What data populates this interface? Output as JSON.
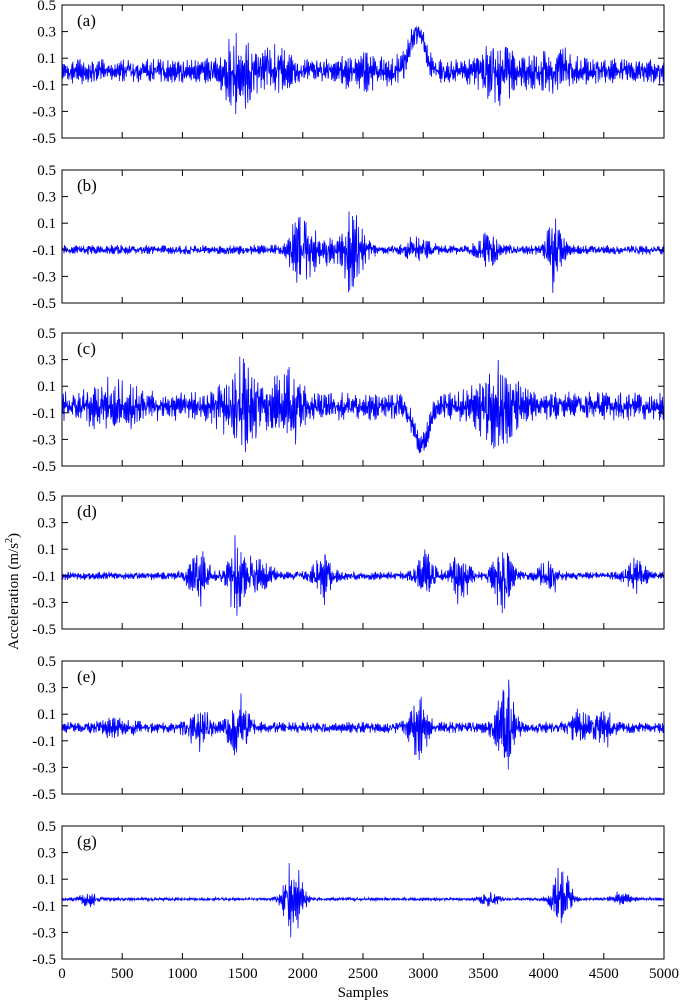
{
  "chart_data": {
    "type": "line",
    "xlabel": "Samples",
    "ylabel_text": "Acceleration (m/s",
    "ylabel_sup": "2",
    "ylabel_tail": ")",
    "xlim": [
      0,
      5000
    ],
    "ylim": [
      -0.5,
      0.5
    ],
    "x_ticks": [
      0,
      500,
      1000,
      1500,
      2000,
      2500,
      3000,
      3500,
      4000,
      4500,
      5000
    ],
    "y_ticks": [
      0.5,
      0.3,
      0.1,
      -0.1,
      -0.3,
      -0.5
    ],
    "line_color": "#0000ff",
    "grid": false,
    "panels": [
      {
        "label": "(a)",
        "baseline": 0.0,
        "noise": 0.09,
        "bursts": [
          [
            1470,
            0.22,
            110
          ],
          [
            1800,
            0.1,
            90
          ],
          [
            3630,
            0.16,
            140
          ],
          [
            4100,
            0.1,
            110
          ],
          [
            2550,
            0.06,
            200
          ]
        ],
        "features": [
          [
            2950,
            0.3,
            60,
            0.18
          ]
        ]
      },
      {
        "label": "(b)",
        "baseline": -0.1,
        "noise": 0.035,
        "bursts": [
          [
            1980,
            0.22,
            70
          ],
          [
            2420,
            0.3,
            70
          ],
          [
            2170,
            0.1,
            80
          ],
          [
            3530,
            0.12,
            60
          ],
          [
            4090,
            0.3,
            45
          ],
          [
            2950,
            0.07,
            80
          ]
        ],
        "features": []
      },
      {
        "label": "(c)",
        "baseline": -0.05,
        "noise": 0.1,
        "bursts": [
          [
            1500,
            0.25,
            130
          ],
          [
            1880,
            0.22,
            80
          ],
          [
            3600,
            0.24,
            130
          ],
          [
            420,
            0.12,
            140
          ]
        ],
        "features": [
          [
            2980,
            -0.3,
            60,
            0.2
          ]
        ]
      },
      {
        "label": "(d)",
        "baseline": -0.1,
        "noise": 0.03,
        "bursts": [
          [
            1130,
            0.2,
            60
          ],
          [
            1460,
            0.3,
            60
          ],
          [
            2170,
            0.18,
            55
          ],
          [
            3020,
            0.16,
            60
          ],
          [
            3310,
            0.22,
            55
          ],
          [
            3660,
            0.25,
            55
          ],
          [
            4050,
            0.12,
            60
          ],
          [
            4770,
            0.12,
            60
          ],
          [
            1650,
            0.12,
            70
          ]
        ],
        "features": []
      },
      {
        "label": "(e)",
        "baseline": 0.0,
        "noise": 0.04,
        "bursts": [
          [
            1130,
            0.14,
            70
          ],
          [
            1460,
            0.24,
            60
          ],
          [
            2960,
            0.2,
            60
          ],
          [
            3680,
            0.36,
            55
          ],
          [
            4300,
            0.1,
            60
          ],
          [
            4500,
            0.12,
            50
          ],
          [
            450,
            0.05,
            100
          ]
        ],
        "features": []
      },
      {
        "label": "(g)",
        "baseline": -0.05,
        "noise": 0.012,
        "bursts": [
          [
            1920,
            0.34,
            55
          ],
          [
            4150,
            0.24,
            55
          ],
          [
            3550,
            0.06,
            50
          ],
          [
            4650,
            0.05,
            60
          ],
          [
            220,
            0.05,
            50
          ]
        ],
        "features": []
      }
    ]
  }
}
